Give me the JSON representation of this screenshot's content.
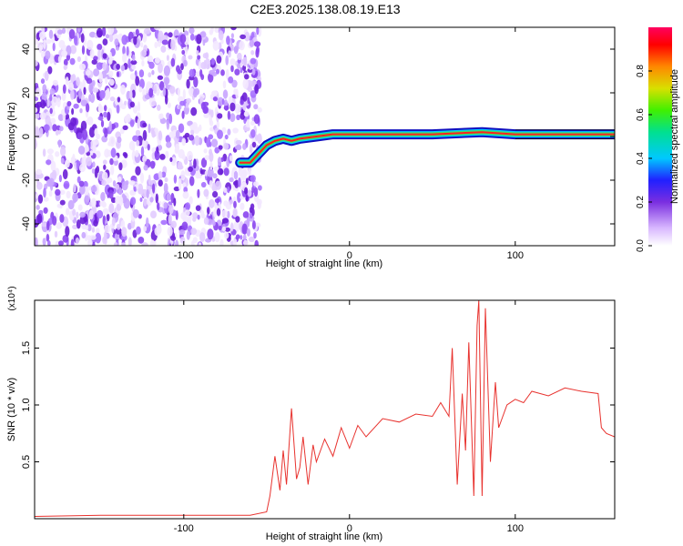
{
  "title": "C2E3.2025.138.08.19.E13",
  "colors": {
    "snr_line": "#e8322e",
    "axis": "#000000",
    "colorbar": [
      "#f2e6ff",
      "#c9a6ff",
      "#7a2ee0",
      "#2020ff",
      "#00c8ff",
      "#00e090",
      "#40f000",
      "#d8e000",
      "#ff8800",
      "#ff0000",
      "#ff0060"
    ]
  },
  "chart_data": [
    {
      "type": "heatmap",
      "xlabel": "Height of straight line (km)",
      "ylabel": "Frequency (Hz)",
      "xlim": [
        -190,
        160
      ],
      "ylim": [
        -50,
        50
      ],
      "xticks": [
        -100,
        0,
        100
      ],
      "yticks": [
        -40,
        -20,
        0,
        20,
        40
      ],
      "colorbar": {
        "label": "Normalized spectral amplitude",
        "range": [
          0,
          1
        ],
        "ticks": [
          0.0,
          0.2,
          0.4,
          0.6,
          0.8
        ]
      },
      "noise_region_x": [
        -190,
        -60
      ],
      "ridge_line": {
        "x": [
          -66,
          -60,
          -55,
          -50,
          -45,
          -40,
          -35,
          -30,
          -20,
          -10,
          0,
          20,
          50,
          80,
          100,
          160
        ],
        "y": [
          -12,
          -12,
          -8,
          -4,
          -2,
          -1,
          -2,
          -1,
          0,
          1,
          1,
          1,
          1,
          2,
          1,
          1
        ]
      }
    },
    {
      "type": "line",
      "xlabel": "Height of straight line (km)",
      "ylabel": "SNR (10 * v/v)",
      "y_multiplier": "(x10⁴)",
      "xlim": [
        -190,
        160
      ],
      "ylim": [
        0,
        1.92
      ],
      "xticks": [
        -100,
        0,
        100
      ],
      "yticks": [
        0.5,
        1.0,
        1.5
      ],
      "series": [
        {
          "x": [
            -190,
            -150,
            -100,
            -60,
            -50,
            -48,
            -45,
            -42,
            -40,
            -38,
            -35,
            -32,
            -30,
            -28,
            -25,
            -22,
            -20,
            -15,
            -10,
            -5,
            0,
            5,
            10,
            20,
            30,
            40,
            50,
            55,
            60,
            62,
            65,
            68,
            70,
            72,
            75,
            77,
            78,
            80,
            82,
            85,
            88,
            90,
            95,
            100,
            105,
            110,
            120,
            130,
            140,
            150,
            152,
            155,
            160
          ],
          "y": [
            0.02,
            0.03,
            0.03,
            0.03,
            0.06,
            0.2,
            0.55,
            0.25,
            0.6,
            0.3,
            0.97,
            0.35,
            0.45,
            0.72,
            0.3,
            0.65,
            0.5,
            0.7,
            0.55,
            0.8,
            0.62,
            0.82,
            0.72,
            0.88,
            0.85,
            0.92,
            0.9,
            1.02,
            0.9,
            1.5,
            0.3,
            1.1,
            0.6,
            1.55,
            0.2,
            1.7,
            1.92,
            0.2,
            1.85,
            0.5,
            1.2,
            0.8,
            1.0,
            1.05,
            1.02,
            1.12,
            1.08,
            1.15,
            1.12,
            1.1,
            0.8,
            0.75,
            0.72
          ]
        }
      ]
    }
  ]
}
